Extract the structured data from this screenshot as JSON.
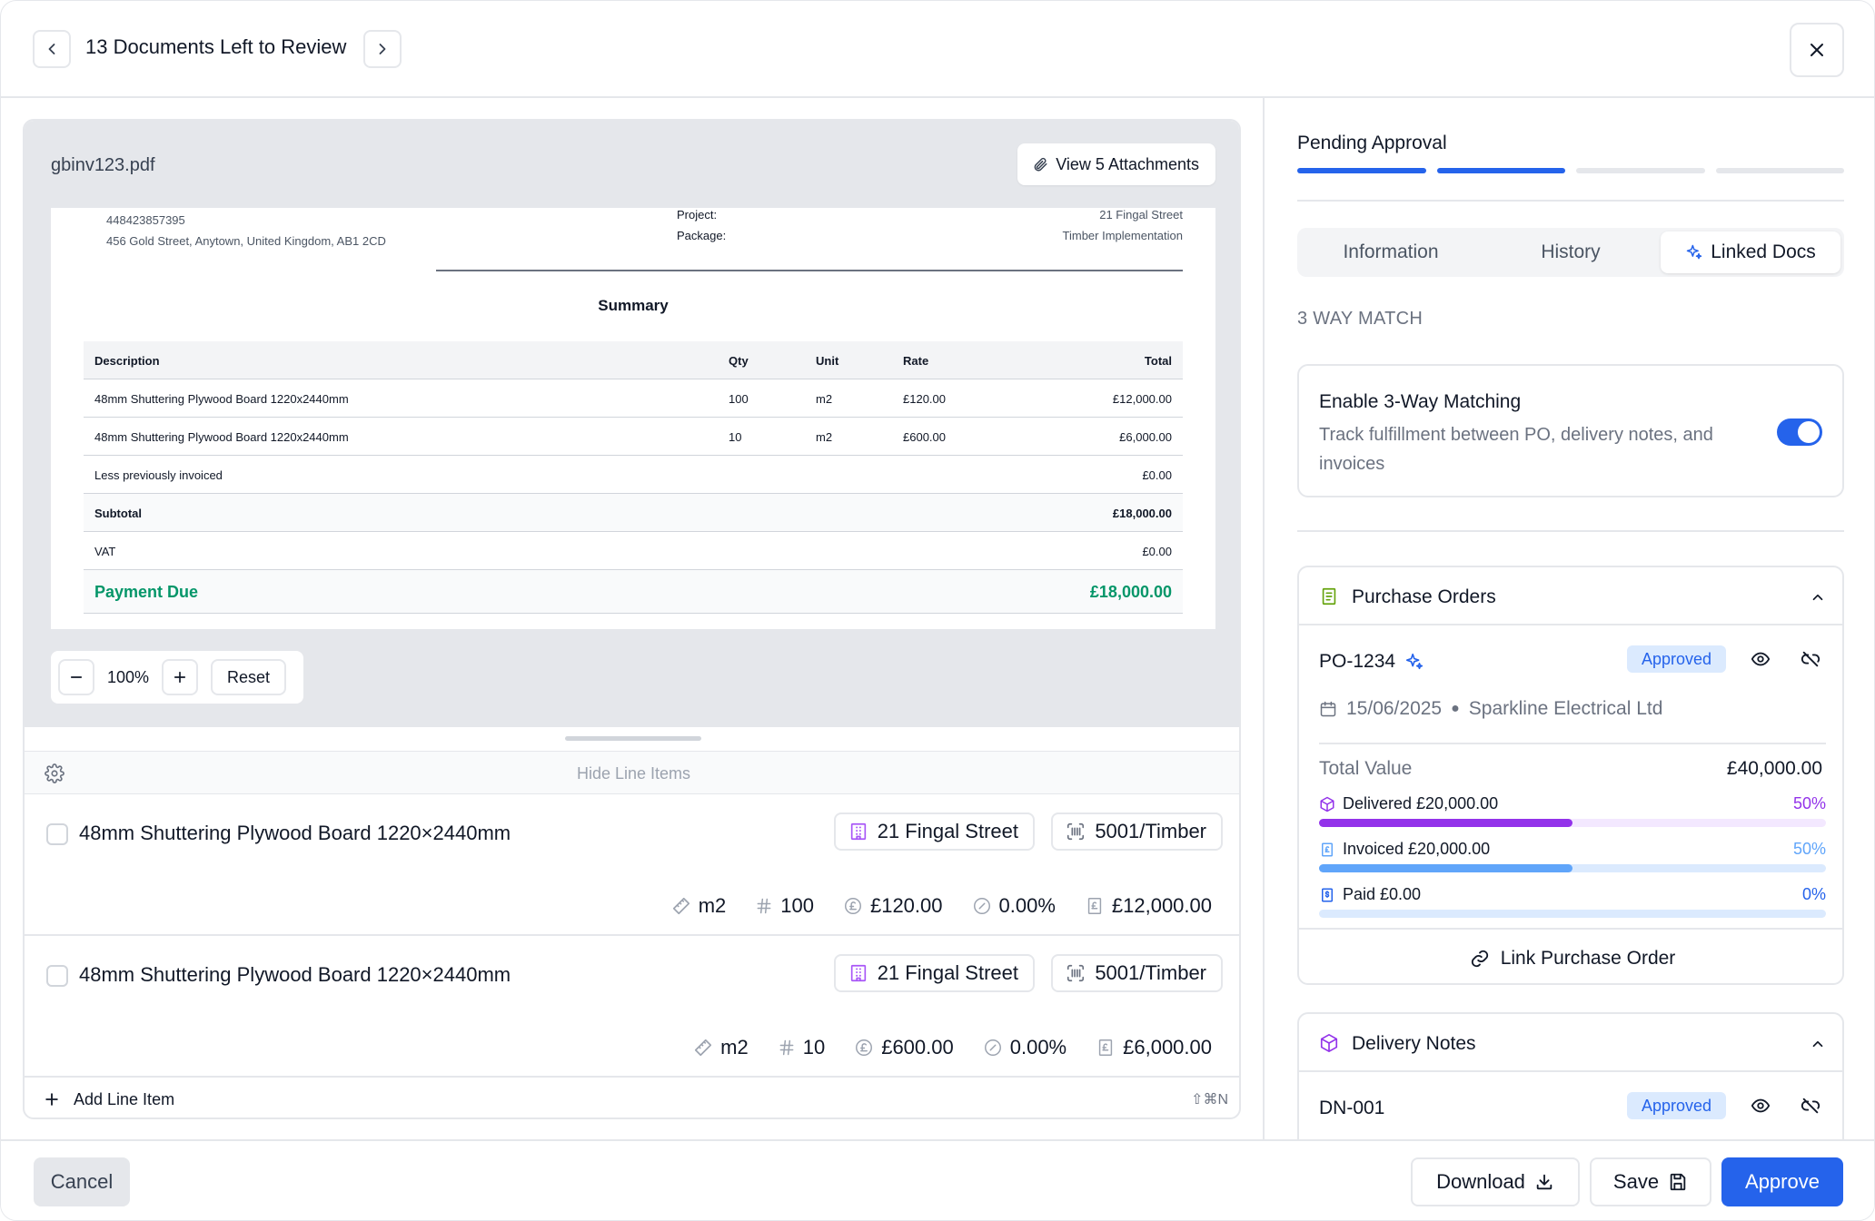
{
  "header": {
    "title": "13 Documents Left to Review"
  },
  "viewer": {
    "file_name": "gbinv123.pdf",
    "attachments_label": "View 5 Attachments",
    "zoom": "100%",
    "reset_label": "Reset"
  },
  "invoice": {
    "phone": "448423857395",
    "address": "456 Gold Street, Anytown, United Kingdom, AB1 2CD",
    "project_label": "Project:",
    "project_value": "21 Fingal Street",
    "package_label": "Package:",
    "package_value": "Timber Implementation",
    "summary_title": "Summary",
    "columns": {
      "description": "Description",
      "qty": "Qty",
      "unit": "Unit",
      "rate": "Rate",
      "total": "Total"
    },
    "rows": [
      {
        "description": "48mm Shuttering Plywood Board 1220x2440mm",
        "qty": "100",
        "unit": "m2",
        "rate": "£120.00",
        "total": "£12,000.00"
      },
      {
        "description": "48mm Shuttering Plywood Board 1220x2440mm",
        "qty": "10",
        "unit": "m2",
        "rate": "£600.00",
        "total": "£6,000.00"
      }
    ],
    "less_label": "Less previously invoiced",
    "less_value": "£0.00",
    "subtotal_label": "Subtotal",
    "subtotal_value": "£18,000.00",
    "vat_label": "VAT",
    "vat_value": "£0.00",
    "payment_label": "Payment Due",
    "payment_value": "£18,000.00"
  },
  "line_items": {
    "hide_label": "Hide Line Items",
    "items": [
      {
        "title": "48mm Shuttering Plywood Board 1220×2440mm",
        "project": "21 Fingal Street",
        "code": "5001/Timber",
        "unit": "m2",
        "qty": "100",
        "rate": "£120.00",
        "tax": "0.00%",
        "total": "£12,000.00"
      },
      {
        "title": "48mm Shuttering Plywood Board 1220×2440mm",
        "project": "21 Fingal Street",
        "code": "5001/Timber",
        "unit": "m2",
        "qty": "10",
        "rate": "£600.00",
        "tax": "0.00%",
        "total": "£6,000.00"
      }
    ],
    "add_label": "Add Line Item",
    "add_shortcut": "⇧⌘N"
  },
  "sidebar": {
    "status": "Pending Approval",
    "steps_completed": 2,
    "steps_total": 4,
    "tabs": [
      "Information",
      "History",
      "Linked Docs"
    ],
    "active_tab": "Linked Docs",
    "section_label": "3 WAY MATCH",
    "enable": {
      "title": "Enable 3-Way Matching",
      "description": "Track fulfillment between PO, delivery notes, and invoices",
      "enabled": true
    },
    "purchase_orders": {
      "title": "Purchase Orders",
      "po_id": "PO-1234",
      "status": "Approved",
      "date": "15/06/2025",
      "supplier": "Sparkline Electrical Ltd",
      "total_label": "Total Value",
      "total_value": "£40,000.00",
      "progress": [
        {
          "label": "Delivered £20,000.00",
          "percent": "50%",
          "value": 0.5,
          "color": "#9333ea",
          "track": "#f3e8ff"
        },
        {
          "label": "Invoiced £20,000.00",
          "percent": "50%",
          "value": 0.5,
          "color": "#60a5fa",
          "track": "#dbeafe"
        },
        {
          "label": "Paid £0.00",
          "percent": "0%",
          "value": 0.0,
          "color": "#2563eb",
          "track": "#dbeafe"
        }
      ],
      "link_label": "Link Purchase Order"
    },
    "delivery_notes": {
      "title": "Delivery Notes",
      "dn_id": "DN-001",
      "status": "Approved"
    }
  },
  "footer": {
    "cancel": "Cancel",
    "download": "Download",
    "save": "Save",
    "approve": "Approve"
  }
}
